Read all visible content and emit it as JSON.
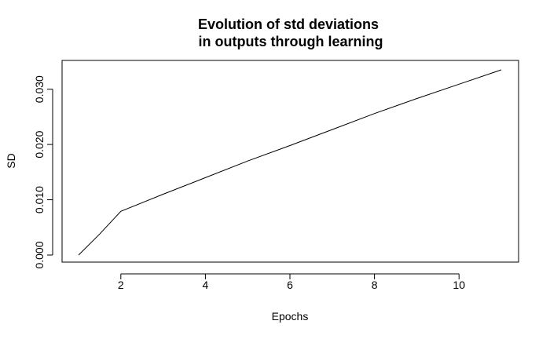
{
  "chart_data": {
    "type": "line",
    "title": "Evolution of std deviations",
    "subtitle": "in outputs through learning",
    "xlabel": "Epochs",
    "ylabel": "SD",
    "x": [
      1,
      1.5,
      2,
      3,
      4,
      5,
      6,
      7,
      8,
      9,
      10,
      11
    ],
    "y": [
      0.0,
      0.0038,
      0.0079,
      0.011,
      0.014,
      0.017,
      0.0198,
      0.0227,
      0.0256,
      0.0283,
      0.0309,
      0.0335
    ],
    "xlim": [
      1,
      11
    ],
    "ylim": [
      0,
      0.0335
    ],
    "x_ticks": [
      2,
      4,
      6,
      8,
      10
    ],
    "y_ticks": [
      0.0,
      0.01,
      0.02,
      0.03
    ],
    "x_tick_labels": [
      "2",
      "4",
      "6",
      "8",
      "10"
    ],
    "y_tick_labels": [
      "0.000",
      "0.010",
      "0.020",
      "0.030"
    ],
    "line_color": "#000000",
    "grid": false,
    "legend": "none"
  }
}
